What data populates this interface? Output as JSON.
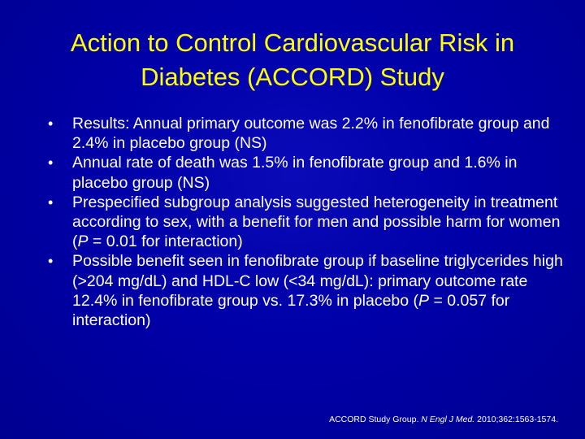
{
  "slide": {
    "title_line1": "Action to Control Cardiovascular Risk in",
    "title_line2": "Diabetes (ACCORD) Study",
    "bullet_symbol": "•",
    "bullets": [
      {
        "text": "Results: Annual primary outcome was 2.2% in fenofibrate group and 2.4% in placebo group (NS)"
      },
      {
        "text": "Annual rate of death was 1.5% in fenofibrate group and 1.6% in placebo group (NS)"
      },
      {
        "text_before": "Prespecified subgroup analysis suggested heterogeneity in treatment according to sex, with a benefit for men and possible harm for women (",
        "italic": "P",
        "text_after": " = 0.01 for interaction)"
      },
      {
        "text_before": "Possible benefit seen in fenofibrate group if baseline triglycerides high (>204 mg/dL) and HDL-C low (<34 mg/dL): primary outcome rate 12.4% in fenofibrate group vs. 17.3% in placebo (",
        "italic": "P",
        "text_after": " = 0.057 for interaction)"
      }
    ],
    "citation": {
      "authors": "ACCORD Study Group. ",
      "journal": "N Engl J Med.",
      "details": " 2010;362:1563-1574."
    }
  },
  "colors": {
    "background": "#0000a8",
    "title": "#ffff00",
    "body_text": "#ffffff"
  }
}
